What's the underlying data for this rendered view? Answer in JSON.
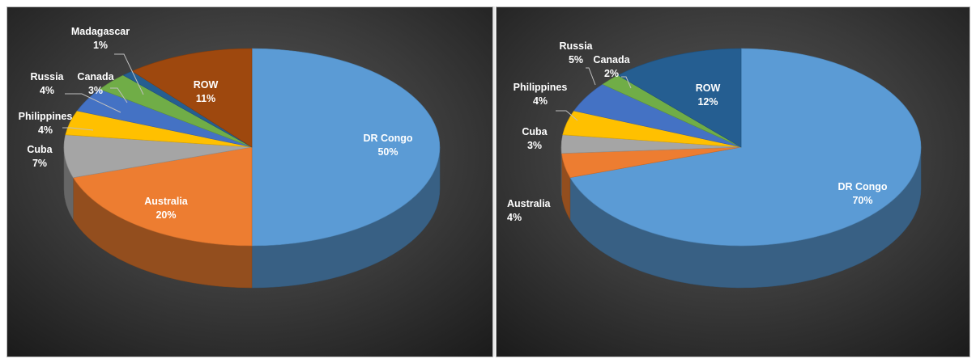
{
  "chart_data": [
    {
      "type": "pie",
      "title": "",
      "slices": [
        {
          "label": "DR Congo",
          "value": 50,
          "pct_label": "50%",
          "color": "#5b9bd5"
        },
        {
          "label": "Australia",
          "value": 20,
          "pct_label": "20%",
          "color": "#ed7d31"
        },
        {
          "label": "Cuba",
          "value": 7,
          "pct_label": "7%",
          "color": "#a5a5a5"
        },
        {
          "label": "Philippines",
          "value": 4,
          "pct_label": "4%",
          "color": "#ffc000"
        },
        {
          "label": "Russia",
          "value": 4,
          "pct_label": "4%",
          "color": "#4472c4"
        },
        {
          "label": "Canada",
          "value": 3,
          "pct_label": "3%",
          "color": "#70ad47"
        },
        {
          "label": "Madagascar",
          "value": 1,
          "pct_label": "1%",
          "color": "#255e91"
        },
        {
          "label": "ROW",
          "value": 11,
          "pct_label": "11%",
          "color": "#9e480e"
        }
      ]
    },
    {
      "type": "pie",
      "title": "",
      "slices": [
        {
          "label": "DR Congo",
          "value": 70,
          "pct_label": "70%",
          "color": "#5b9bd5"
        },
        {
          "label": "Australia",
          "value": 4,
          "pct_label": "4%",
          "color": "#ed7d31"
        },
        {
          "label": "Cuba",
          "value": 3,
          "pct_label": "3%",
          "color": "#a5a5a5"
        },
        {
          "label": "Philippines",
          "value": 4,
          "pct_label": "4%",
          "color": "#ffc000"
        },
        {
          "label": "Russia",
          "value": 5,
          "pct_label": "5%",
          "color": "#4472c4"
        },
        {
          "label": "Canada",
          "value": 2,
          "pct_label": "2%",
          "color": "#70ad47"
        },
        {
          "label": "ROW",
          "value": 12,
          "pct_label": "12%",
          "color": "#255e91"
        }
      ]
    }
  ]
}
